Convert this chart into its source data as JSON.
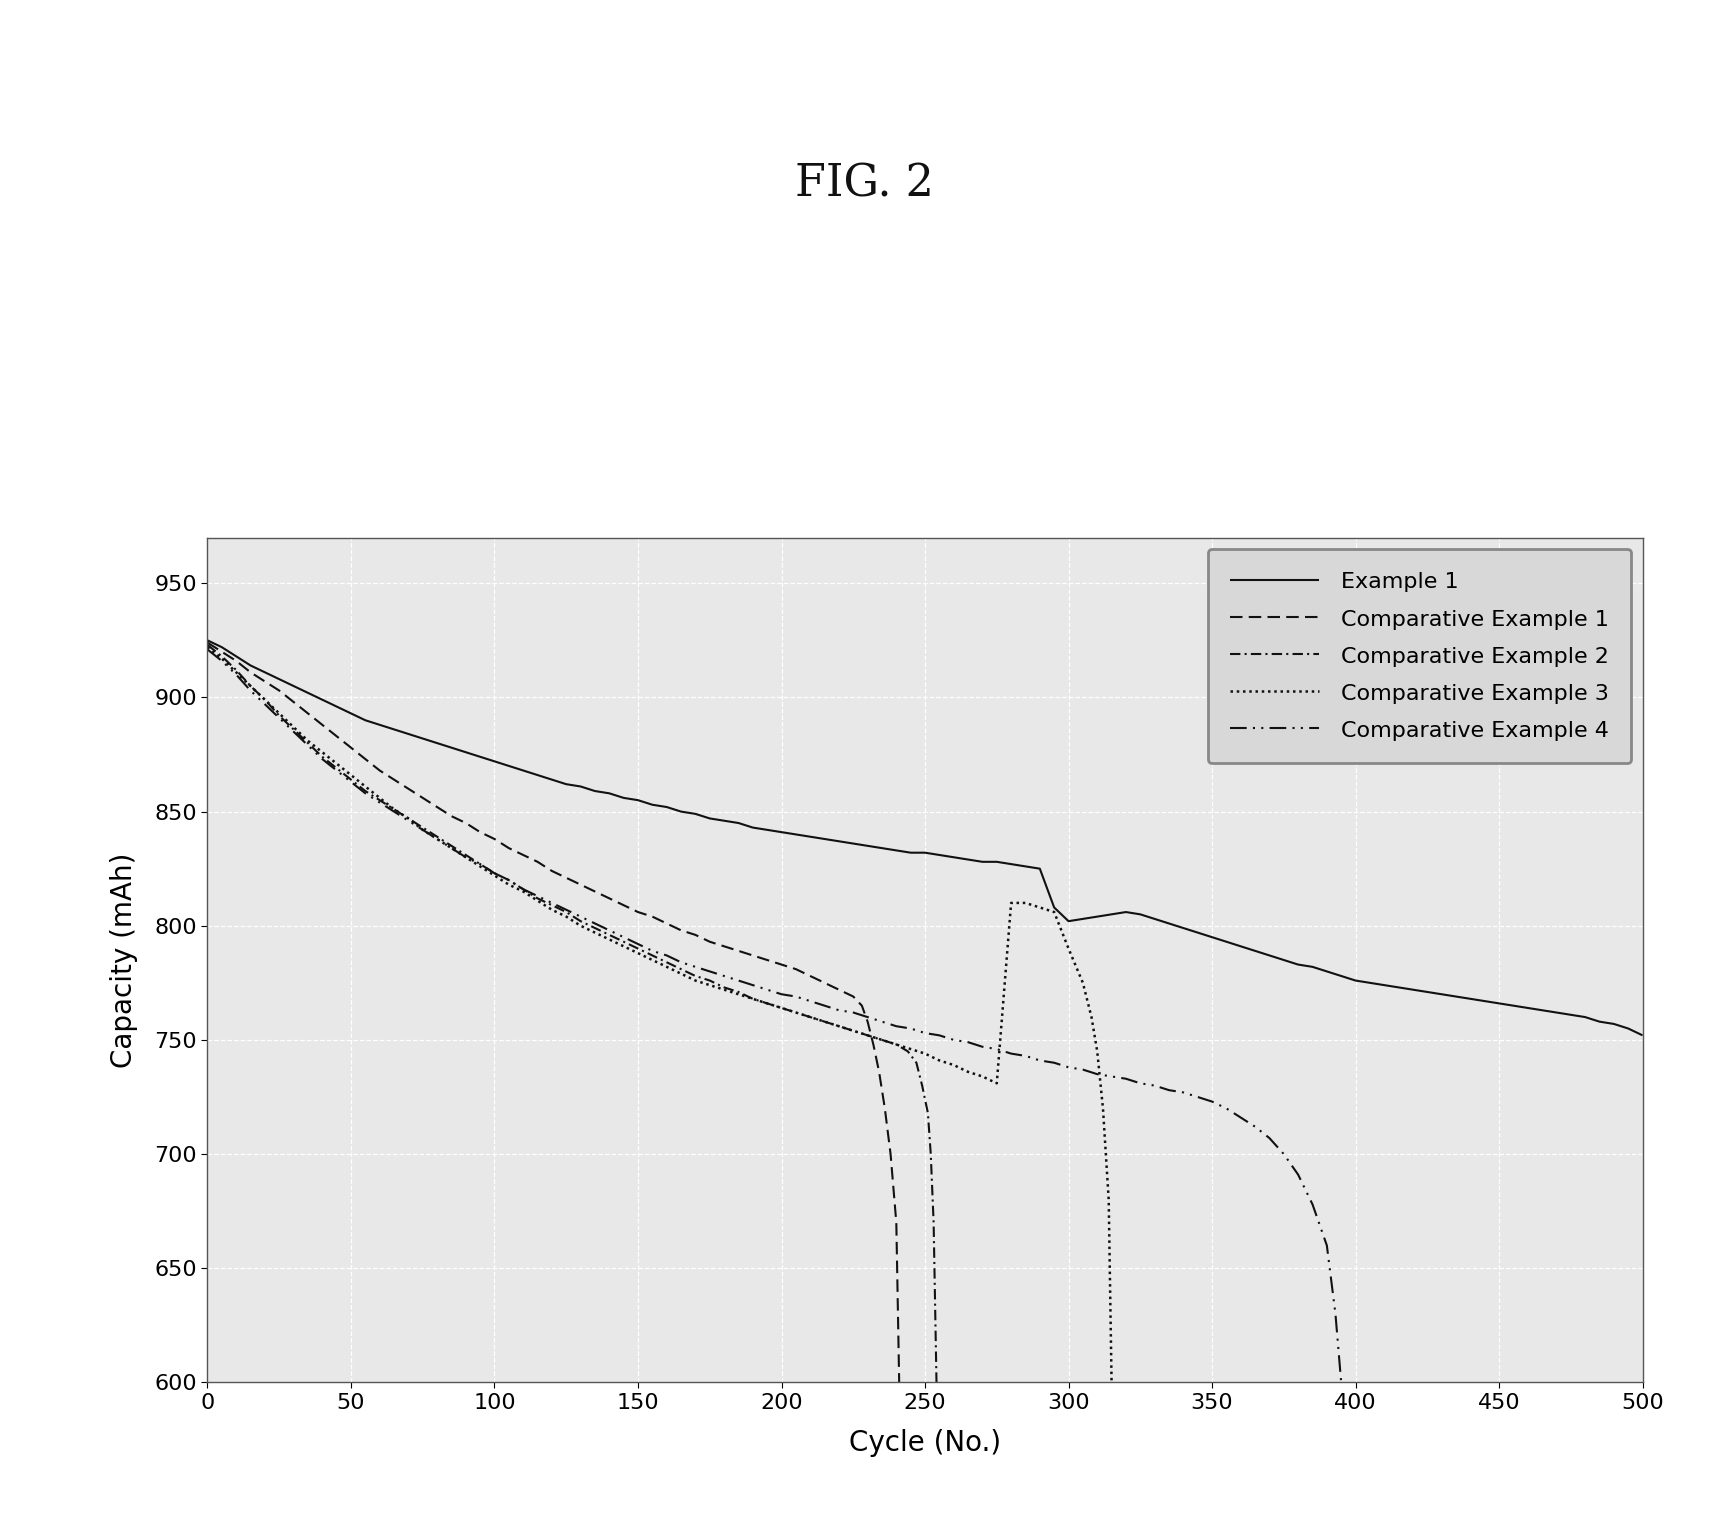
{
  "title": "FIG. 2",
  "xlabel": "Cycle (No.)",
  "ylabel": "Capacity (mAh)",
  "xlim": [
    0,
    500
  ],
  "ylim": [
    600,
    970
  ],
  "yticks": [
    600,
    650,
    700,
    750,
    800,
    850,
    900,
    950
  ],
  "xticks": [
    0,
    50,
    100,
    150,
    200,
    250,
    300,
    350,
    400,
    450,
    500
  ],
  "background_color": "#ffffff",
  "plot_bg_color": "#e8e8e8",
  "grid_color": "#ffffff",
  "series": [
    {
      "label": "Example 1",
      "linestyle": "solid",
      "color": "#111111",
      "linewidth": 1.5,
      "points": [
        [
          0,
          925
        ],
        [
          5,
          922
        ],
        [
          10,
          918
        ],
        [
          15,
          914
        ],
        [
          20,
          911
        ],
        [
          25,
          908
        ],
        [
          30,
          905
        ],
        [
          35,
          902
        ],
        [
          40,
          899
        ],
        [
          45,
          896
        ],
        [
          50,
          893
        ],
        [
          55,
          890
        ],
        [
          60,
          888
        ],
        [
          65,
          886
        ],
        [
          70,
          884
        ],
        [
          75,
          882
        ],
        [
          80,
          880
        ],
        [
          85,
          878
        ],
        [
          90,
          876
        ],
        [
          95,
          874
        ],
        [
          100,
          872
        ],
        [
          105,
          870
        ],
        [
          110,
          868
        ],
        [
          115,
          866
        ],
        [
          120,
          864
        ],
        [
          125,
          862
        ],
        [
          130,
          861
        ],
        [
          135,
          859
        ],
        [
          140,
          858
        ],
        [
          145,
          856
        ],
        [
          150,
          855
        ],
        [
          155,
          853
        ],
        [
          160,
          852
        ],
        [
          165,
          850
        ],
        [
          170,
          849
        ],
        [
          175,
          847
        ],
        [
          180,
          846
        ],
        [
          185,
          845
        ],
        [
          190,
          843
        ],
        [
          195,
          842
        ],
        [
          200,
          841
        ],
        [
          205,
          840
        ],
        [
          210,
          839
        ],
        [
          215,
          838
        ],
        [
          220,
          837
        ],
        [
          225,
          836
        ],
        [
          230,
          835
        ],
        [
          235,
          834
        ],
        [
          240,
          833
        ],
        [
          245,
          832
        ],
        [
          250,
          832
        ],
        [
          255,
          831
        ],
        [
          260,
          830
        ],
        [
          265,
          829
        ],
        [
          270,
          828
        ],
        [
          275,
          828
        ],
        [
          280,
          827
        ],
        [
          285,
          826
        ],
        [
          290,
          825
        ],
        [
          295,
          808
        ],
        [
          300,
          802
        ],
        [
          305,
          803
        ],
        [
          310,
          804
        ],
        [
          315,
          805
        ],
        [
          320,
          806
        ],
        [
          325,
          805
        ],
        [
          330,
          803
        ],
        [
          335,
          801
        ],
        [
          340,
          799
        ],
        [
          345,
          797
        ],
        [
          350,
          795
        ],
        [
          355,
          793
        ],
        [
          360,
          791
        ],
        [
          365,
          789
        ],
        [
          370,
          787
        ],
        [
          375,
          785
        ],
        [
          380,
          783
        ],
        [
          385,
          782
        ],
        [
          390,
          780
        ],
        [
          395,
          778
        ],
        [
          400,
          776
        ],
        [
          405,
          775
        ],
        [
          410,
          774
        ],
        [
          415,
          773
        ],
        [
          420,
          772
        ],
        [
          425,
          771
        ],
        [
          430,
          770
        ],
        [
          435,
          769
        ],
        [
          440,
          768
        ],
        [
          445,
          767
        ],
        [
          450,
          766
        ],
        [
          455,
          765
        ],
        [
          460,
          764
        ],
        [
          465,
          763
        ],
        [
          470,
          762
        ],
        [
          475,
          761
        ],
        [
          480,
          760
        ],
        [
          485,
          758
        ],
        [
          490,
          757
        ],
        [
          495,
          755
        ],
        [
          500,
          752
        ]
      ]
    },
    {
      "label": "Comparative Example 1",
      "linestyle": "dashed",
      "color": "#111111",
      "linewidth": 1.5,
      "points": [
        [
          0,
          924
        ],
        [
          5,
          920
        ],
        [
          10,
          916
        ],
        [
          15,
          911
        ],
        [
          20,
          907
        ],
        [
          25,
          903
        ],
        [
          30,
          898
        ],
        [
          35,
          893
        ],
        [
          40,
          888
        ],
        [
          45,
          883
        ],
        [
          50,
          878
        ],
        [
          55,
          873
        ],
        [
          60,
          868
        ],
        [
          65,
          864
        ],
        [
          70,
          860
        ],
        [
          75,
          856
        ],
        [
          80,
          852
        ],
        [
          85,
          848
        ],
        [
          90,
          845
        ],
        [
          95,
          841
        ],
        [
          100,
          838
        ],
        [
          105,
          834
        ],
        [
          110,
          831
        ],
        [
          115,
          828
        ],
        [
          120,
          824
        ],
        [
          125,
          821
        ],
        [
          130,
          818
        ],
        [
          135,
          815
        ],
        [
          140,
          812
        ],
        [
          145,
          809
        ],
        [
          150,
          806
        ],
        [
          155,
          804
        ],
        [
          160,
          801
        ],
        [
          165,
          798
        ],
        [
          170,
          796
        ],
        [
          175,
          793
        ],
        [
          180,
          791
        ],
        [
          185,
          789
        ],
        [
          190,
          787
        ],
        [
          195,
          785
        ],
        [
          200,
          783
        ],
        [
          205,
          781
        ],
        [
          210,
          778
        ],
        [
          215,
          775
        ],
        [
          220,
          772
        ],
        [
          225,
          769
        ],
        [
          228,
          765
        ],
        [
          230,
          758
        ],
        [
          232,
          748
        ],
        [
          234,
          736
        ],
        [
          236,
          720
        ],
        [
          238,
          700
        ],
        [
          240,
          670
        ],
        [
          241,
          600
        ]
      ]
    },
    {
      "label": "Comparative Example 2",
      "linestyle": "dashdot",
      "color": "#111111",
      "linewidth": 1.5,
      "points": [
        [
          0,
          923
        ],
        [
          5,
          918
        ],
        [
          10,
          912
        ],
        [
          15,
          905
        ],
        [
          20,
          899
        ],
        [
          25,
          892
        ],
        [
          30,
          886
        ],
        [
          35,
          880
        ],
        [
          40,
          874
        ],
        [
          45,
          869
        ],
        [
          50,
          864
        ],
        [
          55,
          859
        ],
        [
          60,
          855
        ],
        [
          65,
          851
        ],
        [
          70,
          847
        ],
        [
          75,
          843
        ],
        [
          80,
          839
        ],
        [
          85,
          835
        ],
        [
          90,
          831
        ],
        [
          95,
          827
        ],
        [
          100,
          823
        ],
        [
          105,
          820
        ],
        [
          110,
          816
        ],
        [
          115,
          812
        ],
        [
          120,
          809
        ],
        [
          125,
          806
        ],
        [
          130,
          802
        ],
        [
          135,
          799
        ],
        [
          140,
          796
        ],
        [
          145,
          793
        ],
        [
          150,
          790
        ],
        [
          155,
          787
        ],
        [
          160,
          784
        ],
        [
          165,
          781
        ],
        [
          170,
          778
        ],
        [
          175,
          776
        ],
        [
          180,
          773
        ],
        [
          185,
          771
        ],
        [
          190,
          768
        ],
        [
          195,
          766
        ],
        [
          200,
          764
        ],
        [
          205,
          762
        ],
        [
          210,
          760
        ],
        [
          215,
          758
        ],
        [
          220,
          756
        ],
        [
          225,
          754
        ],
        [
          230,
          752
        ],
        [
          235,
          750
        ],
        [
          240,
          748
        ],
        [
          244,
          745
        ],
        [
          247,
          740
        ],
        [
          249,
          730
        ],
        [
          251,
          718
        ],
        [
          252,
          700
        ],
        [
          253,
          670
        ],
        [
          254,
          600
        ]
      ]
    },
    {
      "label": "Comparative Example 3",
      "linestyle": "dotted",
      "color": "#111111",
      "linewidth": 1.8,
      "points": [
        [
          0,
          922
        ],
        [
          5,
          917
        ],
        [
          10,
          911
        ],
        [
          15,
          905
        ],
        [
          20,
          899
        ],
        [
          25,
          893
        ],
        [
          30,
          887
        ],
        [
          35,
          881
        ],
        [
          40,
          876
        ],
        [
          45,
          871
        ],
        [
          50,
          866
        ],
        [
          55,
          861
        ],
        [
          60,
          856
        ],
        [
          65,
          851
        ],
        [
          70,
          847
        ],
        [
          75,
          842
        ],
        [
          80,
          838
        ],
        [
          85,
          834
        ],
        [
          90,
          830
        ],
        [
          95,
          826
        ],
        [
          100,
          822
        ],
        [
          105,
          818
        ],
        [
          110,
          815
        ],
        [
          115,
          811
        ],
        [
          120,
          807
        ],
        [
          125,
          804
        ],
        [
          130,
          800
        ],
        [
          135,
          797
        ],
        [
          140,
          794
        ],
        [
          145,
          791
        ],
        [
          150,
          788
        ],
        [
          155,
          785
        ],
        [
          160,
          782
        ],
        [
          165,
          779
        ],
        [
          170,
          776
        ],
        [
          175,
          774
        ],
        [
          180,
          772
        ],
        [
          185,
          770
        ],
        [
          190,
          768
        ],
        [
          195,
          766
        ],
        [
          200,
          764
        ],
        [
          205,
          762
        ],
        [
          210,
          760
        ],
        [
          215,
          758
        ],
        [
          220,
          756
        ],
        [
          225,
          754
        ],
        [
          230,
          752
        ],
        [
          235,
          750
        ],
        [
          240,
          748
        ],
        [
          245,
          746
        ],
        [
          250,
          744
        ],
        [
          255,
          741
        ],
        [
          260,
          739
        ],
        [
          265,
          736
        ],
        [
          270,
          734
        ],
        [
          275,
          731
        ],
        [
          280,
          810
        ],
        [
          285,
          810
        ],
        [
          290,
          808
        ],
        [
          295,
          806
        ],
        [
          300,
          790
        ],
        [
          305,
          775
        ],
        [
          308,
          760
        ],
        [
          310,
          745
        ],
        [
          312,
          720
        ],
        [
          314,
          680
        ],
        [
          315,
          600
        ]
      ]
    },
    {
      "label": "Comparative Example 4",
      "linestyle": "loosedash",
      "color": "#111111",
      "linewidth": 1.5,
      "points": [
        [
          0,
          921
        ],
        [
          5,
          916
        ],
        [
          10,
          910
        ],
        [
          15,
          903
        ],
        [
          20,
          897
        ],
        [
          25,
          891
        ],
        [
          30,
          885
        ],
        [
          35,
          879
        ],
        [
          40,
          873
        ],
        [
          45,
          868
        ],
        [
          50,
          863
        ],
        [
          55,
          858
        ],
        [
          60,
          854
        ],
        [
          65,
          850
        ],
        [
          70,
          846
        ],
        [
          75,
          842
        ],
        [
          80,
          838
        ],
        [
          85,
          834
        ],
        [
          90,
          830
        ],
        [
          95,
          827
        ],
        [
          100,
          823
        ],
        [
          105,
          820
        ],
        [
          110,
          816
        ],
        [
          115,
          813
        ],
        [
          120,
          810
        ],
        [
          125,
          807
        ],
        [
          130,
          804
        ],
        [
          135,
          801
        ],
        [
          140,
          798
        ],
        [
          145,
          795
        ],
        [
          150,
          792
        ],
        [
          155,
          789
        ],
        [
          160,
          787
        ],
        [
          165,
          784
        ],
        [
          170,
          782
        ],
        [
          175,
          780
        ],
        [
          180,
          778
        ],
        [
          185,
          776
        ],
        [
          190,
          774
        ],
        [
          195,
          772
        ],
        [
          200,
          770
        ],
        [
          205,
          769
        ],
        [
          210,
          767
        ],
        [
          215,
          765
        ],
        [
          220,
          763
        ],
        [
          225,
          762
        ],
        [
          230,
          760
        ],
        [
          235,
          758
        ],
        [
          240,
          756
        ],
        [
          245,
          755
        ],
        [
          250,
          753
        ],
        [
          255,
          752
        ],
        [
          260,
          750
        ],
        [
          265,
          749
        ],
        [
          270,
          747
        ],
        [
          275,
          746
        ],
        [
          280,
          744
        ],
        [
          285,
          743
        ],
        [
          290,
          741
        ],
        [
          295,
          740
        ],
        [
          300,
          738
        ],
        [
          305,
          737
        ],
        [
          310,
          735
        ],
        [
          315,
          734
        ],
        [
          320,
          733
        ],
        [
          325,
          731
        ],
        [
          330,
          730
        ],
        [
          335,
          728
        ],
        [
          340,
          727
        ],
        [
          345,
          725
        ],
        [
          350,
          723
        ],
        [
          355,
          720
        ],
        [
          360,
          716
        ],
        [
          365,
          712
        ],
        [
          370,
          707
        ],
        [
          375,
          700
        ],
        [
          380,
          691
        ],
        [
          385,
          678
        ],
        [
          390,
          660
        ],
        [
          393,
          630
        ],
        [
          395,
          600
        ]
      ]
    }
  ]
}
